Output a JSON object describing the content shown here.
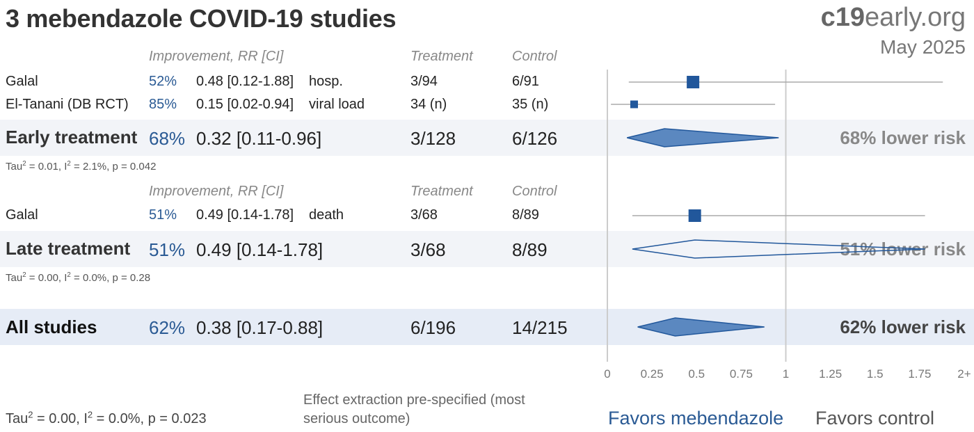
{
  "header": {
    "title": "3 mebendazole COVID-19 studies",
    "logo_bold": "c19",
    "logo_rest": "early.org",
    "date": "May 2025"
  },
  "columns": {
    "improvement": "Improvement, RR [CI]",
    "treatment": "Treatment",
    "control": "Control"
  },
  "groups": [
    {
      "name": "Early treatment",
      "studies": [
        {
          "name": "Galal",
          "pct": "52%",
          "rr_text": "0.48 [0.12-1.88]",
          "outcome": "hosp.",
          "treatment": "3/94",
          "control": "6/91",
          "rr": 0.48,
          "lo": 0.12,
          "hi": 1.88
        },
        {
          "name": "El-Tanani (DB RCT)",
          "pct": "85%",
          "rr_text": "0.15 [0.02-0.94]",
          "outcome": "viral load",
          "treatment": "34 (n)",
          "control": "35 (n)",
          "rr": 0.15,
          "lo": 0.02,
          "hi": 0.94
        }
      ],
      "summary": {
        "pct": "68%",
        "rr_text": "0.32 [0.11-0.96]",
        "treatment": "3/128",
        "control": "6/126",
        "risk": "68% lower risk",
        "rr": 0.32,
        "lo": 0.11,
        "hi": 0.96,
        "filled": true
      },
      "het": {
        "tau": "Tau",
        "i": "I",
        "tau_val": " = 0.01, ",
        "i_val": " = 2.1%, p = 0.042"
      }
    },
    {
      "name": "Late treatment",
      "studies": [
        {
          "name": "Galal",
          "pct": "51%",
          "rr_text": "0.49 [0.14-1.78]",
          "outcome": "death",
          "treatment": "3/68",
          "control": "8/89",
          "rr": 0.49,
          "lo": 0.14,
          "hi": 1.78
        }
      ],
      "summary": {
        "pct": "51%",
        "rr_text": "0.49 [0.14-1.78]",
        "treatment": "3/68",
        "control": "8/89",
        "risk": "51% lower risk",
        "rr": 0.49,
        "lo": 0.14,
        "hi": 1.78,
        "filled": false
      },
      "het": {
        "tau": "Tau",
        "i": "I",
        "tau_val": " = 0.00, ",
        "i_val": " = 0.0%, p = 0.28"
      }
    }
  ],
  "all": {
    "name": "All studies",
    "pct": "62%",
    "rr_text": "0.38 [0.17-0.88]",
    "treatment": "6/196",
    "control": "14/215",
    "risk": "62% lower risk",
    "rr": 0.38,
    "lo": 0.17,
    "hi": 0.88
  },
  "all_het": {
    "tau": "Tau",
    "i": "I",
    "tau_val": " = 0.00, ",
    "i_val": " = 0.0%, p = 0.023"
  },
  "note": "Effect extraction pre-specified (most serious outcome)",
  "favors_left": "Favors mebendazole",
  "favors_right": "Favors control",
  "colors": {
    "accent": "#2a5a94",
    "marker": "#21579b",
    "diamond_fill": "#5b88c0",
    "ci": "#aaaaaa",
    "axis": "#cccccc"
  },
  "chart_data": {
    "type": "forest",
    "x_ticks": [
      "0",
      "0.25",
      "0.5",
      "0.75",
      "1",
      "1.25",
      "1.5",
      "1.75",
      "2+"
    ],
    "xlim": [
      0,
      2
    ],
    "reference_line": 1,
    "points": [
      {
        "label": "Galal (hosp.)",
        "rr": 0.48,
        "lo": 0.12,
        "hi": 1.88,
        "kind": "study"
      },
      {
        "label": "El-Tanani (DB RCT)",
        "rr": 0.15,
        "lo": 0.02,
        "hi": 0.94,
        "kind": "study"
      },
      {
        "label": "Early treatment",
        "rr": 0.32,
        "lo": 0.11,
        "hi": 0.96,
        "kind": "summary"
      },
      {
        "label": "Galal (death)",
        "rr": 0.49,
        "lo": 0.14,
        "hi": 1.78,
        "kind": "study"
      },
      {
        "label": "Late treatment",
        "rr": 0.49,
        "lo": 0.14,
        "hi": 1.78,
        "kind": "summary"
      },
      {
        "label": "All studies",
        "rr": 0.38,
        "lo": 0.17,
        "hi": 0.88,
        "kind": "summary"
      }
    ]
  }
}
